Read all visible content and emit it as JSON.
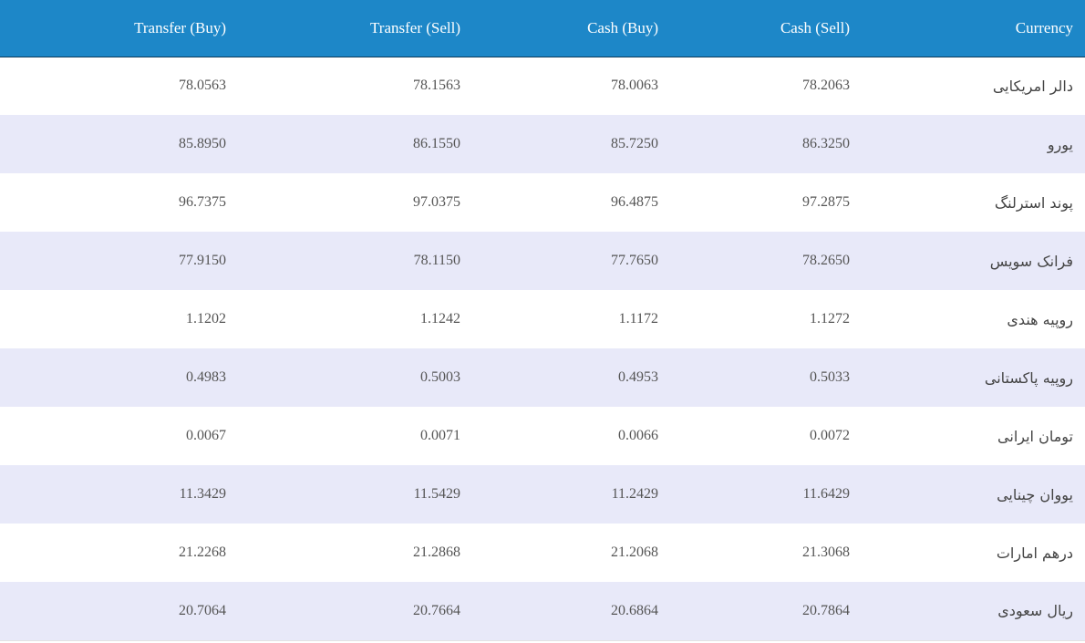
{
  "table": {
    "headers": {
      "transfer_buy": "Transfer (Buy)",
      "transfer_sell": "Transfer (Sell)",
      "cash_buy": "Cash (Buy)",
      "cash_sell": "Cash (Sell)",
      "currency": "Currency"
    },
    "rows": [
      {
        "transfer_buy": "78.0563",
        "transfer_sell": "78.1563",
        "cash_buy": "78.0063",
        "cash_sell": "78.2063",
        "currency": "دالر امریکایی"
      },
      {
        "transfer_buy": "85.8950",
        "transfer_sell": "86.1550",
        "cash_buy": "85.7250",
        "cash_sell": "86.3250",
        "currency": "یورو"
      },
      {
        "transfer_buy": "96.7375",
        "transfer_sell": "97.0375",
        "cash_buy": "96.4875",
        "cash_sell": "97.2875",
        "currency": "پوند استرلنگ"
      },
      {
        "transfer_buy": "77.9150",
        "transfer_sell": "78.1150",
        "cash_buy": "77.7650",
        "cash_sell": "78.2650",
        "currency": "فرانک سویس"
      },
      {
        "transfer_buy": "1.1202",
        "transfer_sell": "1.1242",
        "cash_buy": "1.1172",
        "cash_sell": "1.1272",
        "currency": "روپیه هندی"
      },
      {
        "transfer_buy": "0.4983",
        "transfer_sell": "0.5003",
        "cash_buy": "0.4953",
        "cash_sell": "0.5033",
        "currency": "روپیه پاکستانی"
      },
      {
        "transfer_buy": "0.0067",
        "transfer_sell": "0.0071",
        "cash_buy": "0.0066",
        "cash_sell": "0.0072",
        "currency": "تومان ایرانی"
      },
      {
        "transfer_buy": "11.3429",
        "transfer_sell": "11.5429",
        "cash_buy": "11.2429",
        "cash_sell": "11.6429",
        "currency": "یووان چینایی"
      },
      {
        "transfer_buy": "21.2268",
        "transfer_sell": "21.2868",
        "cash_buy": "21.2068",
        "cash_sell": "21.3068",
        "currency": "درهم امارات"
      },
      {
        "transfer_buy": "20.7064",
        "transfer_sell": "20.7664",
        "cash_buy": "20.6864",
        "cash_sell": "20.7864",
        "currency": "ریال سعودی"
      }
    ]
  },
  "colors": {
    "header_bg": "#1d87c8",
    "header_text": "#ffffff",
    "row_alt_bg": "#e8e9f9",
    "cell_text": "#555555"
  }
}
